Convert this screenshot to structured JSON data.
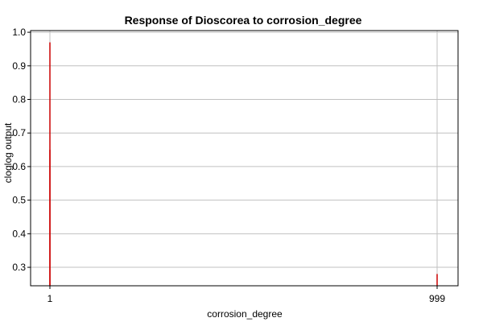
{
  "chart_data": {
    "type": "bar",
    "title": "Response of Dioscorea to corrosion_degree",
    "xlabel": "corrosion_degree",
    "ylabel": "cloglog output",
    "ylim": [
      0.245,
      1.005
    ],
    "yticks": [
      0.3,
      0.4,
      0.5,
      0.6,
      0.7,
      0.8,
      0.9,
      1.0
    ],
    "ytick_labels": [
      "0.3",
      "0.4",
      "0.5",
      "0.6",
      "0.7",
      "0.8",
      "0.9",
      "1.0"
    ],
    "xrange": [
      1,
      999
    ],
    "xticks": [
      1,
      999
    ],
    "xtick_labels": [
      "1",
      "999"
    ],
    "grid": true,
    "series_color": "#cc0000",
    "series": [
      {
        "values": [
          {
            "x": 1,
            "y": 0.97
          },
          {
            "x": 1,
            "y": 0.65
          },
          {
            "x": 999,
            "y": 0.28
          }
        ]
      }
    ]
  }
}
